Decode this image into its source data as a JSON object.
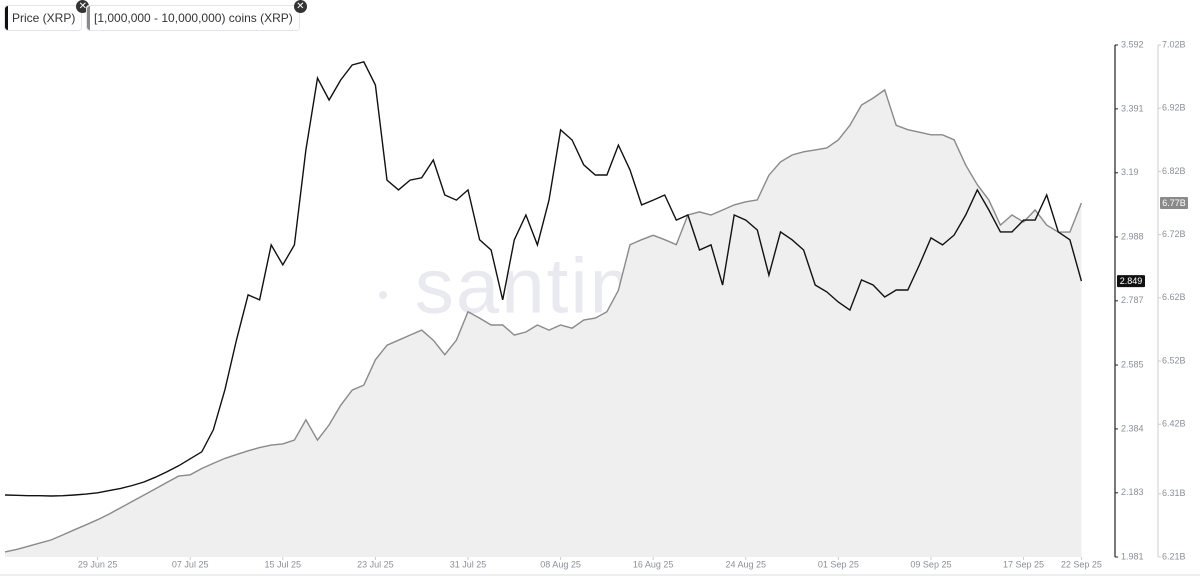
{
  "chart_data": {
    "type": "line",
    "watermark": "santiment",
    "x": [
      "21 Jun 25",
      "22 Jun 25",
      "23 Jun 25",
      "24 Jun 25",
      "25 Jun 25",
      "26 Jun 25",
      "27 Jun 25",
      "28 Jun 25",
      "29 Jun 25",
      "30 Jun 25",
      "01 Jul 25",
      "02 Jul 25",
      "03 Jul 25",
      "04 Jul 25",
      "05 Jul 25",
      "06 Jul 25",
      "07 Jul 25",
      "08 Jul 25",
      "09 Jul 25",
      "10 Jul 25",
      "11 Jul 25",
      "12 Jul 25",
      "13 Jul 25",
      "14 Jul 25",
      "15 Jul 25",
      "16 Jul 25",
      "17 Jul 25",
      "18 Jul 25",
      "19 Jul 25",
      "20 Jul 25",
      "21 Jul 25",
      "22 Jul 25",
      "23 Jul 25",
      "24 Jul 25",
      "25 Jul 25",
      "26 Jul 25",
      "27 Jul 25",
      "28 Jul 25",
      "29 Jul 25",
      "30 Jul 25",
      "31 Jul 25",
      "01 Aug 25",
      "02 Aug 25",
      "03 Aug 25",
      "04 Aug 25",
      "05 Aug 25",
      "06 Aug 25",
      "07 Aug 25",
      "08 Aug 25",
      "09 Aug 25",
      "10 Aug 25",
      "11 Aug 25",
      "12 Aug 25",
      "13 Aug 25",
      "14 Aug 25",
      "15 Aug 25",
      "16 Aug 25",
      "17 Aug 25",
      "18 Aug 25",
      "19 Aug 25",
      "20 Aug 25",
      "21 Aug 25",
      "22 Aug 25",
      "23 Aug 25",
      "24 Aug 25",
      "25 Aug 25",
      "26 Aug 25",
      "27 Aug 25",
      "28 Aug 25",
      "29 Aug 25",
      "30 Aug 25",
      "31 Aug 25",
      "01 Sep 25",
      "02 Sep 25",
      "03 Sep 25",
      "04 Sep 25",
      "05 Sep 25",
      "06 Sep 25",
      "07 Sep 25",
      "08 Sep 25",
      "09 Sep 25",
      "10 Sep 25",
      "11 Sep 25",
      "12 Sep 25",
      "13 Sep 25",
      "14 Sep 25",
      "15 Sep 25",
      "16 Sep 25",
      "17 Sep 25",
      "18 Sep 25",
      "19 Sep 25",
      "20 Sep 25",
      "21 Sep 25",
      "22 Sep 25"
    ],
    "xlim": [
      "21 Jun 25",
      "23 Sep 25"
    ],
    "xticks": [
      "29 Jun 25",
      "07 Jul 25",
      "15 Jul 25",
      "23 Jul 25",
      "31 Jul 25",
      "08 Aug 25",
      "16 Aug 25",
      "24 Aug 25",
      "01 Sep 25",
      "09 Sep 25",
      "17 Sep 25",
      "22 Sep 25"
    ],
    "ylim": [
      1.981,
      3.592
    ],
    "yticks": [
      3.592,
      3.391,
      3.19,
      2.988,
      2.787,
      2.585,
      2.384,
      2.183,
      1.981
    ],
    "y2lim": [
      6.21,
      7.02
    ],
    "y2ticks": [
      {
        "value": 7.02,
        "label": "7.02B"
      },
      {
        "value": 6.92,
        "label": "6.92B"
      },
      {
        "value": 6.82,
        "label": "6.82B"
      },
      {
        "value": 6.72,
        "label": "6.72B"
      },
      {
        "value": 6.62,
        "label": "6.62B"
      },
      {
        "value": 6.52,
        "label": "6.52B"
      },
      {
        "value": 6.42,
        "label": "6.42B"
      },
      {
        "value": 6.31,
        "label": "6.31B"
      },
      {
        "value": 6.21,
        "label": "6.21B"
      }
    ],
    "series": [
      {
        "name": "Price (XRP)",
        "color": "#111111",
        "last_label": "2.849",
        "values": [
          2.176,
          2.175,
          2.174,
          2.174,
          2.173,
          2.174,
          2.176,
          2.179,
          2.183,
          2.19,
          2.197,
          2.206,
          2.217,
          2.232,
          2.249,
          2.268,
          2.29,
          2.312,
          2.381,
          2.507,
          2.664,
          2.806,
          2.79,
          2.963,
          2.9,
          2.963,
          3.262,
          3.488,
          3.419,
          3.482,
          3.529,
          3.539,
          3.466,
          3.167,
          3.136,
          3.167,
          3.174,
          3.23,
          3.12,
          3.104,
          3.136,
          2.979,
          2.947,
          2.79,
          2.979,
          3.057,
          2.963,
          3.104,
          3.325,
          3.293,
          3.215,
          3.183,
          3.183,
          3.277,
          3.199,
          3.089,
          3.104,
          3.12,
          3.041,
          3.057,
          2.947,
          2.963,
          2.837,
          3.057,
          3.041,
          3.01,
          2.868,
          3.004,
          2.979,
          2.947,
          2.837,
          2.815,
          2.783,
          2.758,
          2.853,
          2.837,
          2.799,
          2.821,
          2.821,
          2.9,
          2.985,
          2.963,
          2.994,
          3.057,
          3.136,
          3.073,
          3.004,
          3.004,
          3.041,
          3.041,
          3.12,
          3.004,
          2.979,
          2.849
        ]
      },
      {
        "name": "[1,000,000 - 10,000,000) coins (XRP)",
        "color": "#8a8a8a",
        "fill": "#efefef",
        "axis": "y2",
        "last_label": "6.77B",
        "values": [
          6.218,
          6.222,
          6.227,
          6.232,
          6.237,
          6.245,
          6.253,
          6.261,
          6.269,
          6.278,
          6.288,
          6.298,
          6.308,
          6.318,
          6.328,
          6.338,
          6.34,
          6.35,
          6.358,
          6.366,
          6.372,
          6.378,
          6.383,
          6.387,
          6.389,
          6.395,
          6.427,
          6.395,
          6.419,
          6.45,
          6.474,
          6.482,
          6.522,
          6.545,
          6.553,
          6.561,
          6.569,
          6.553,
          6.53,
          6.553,
          6.598,
          6.588,
          6.577,
          6.577,
          6.561,
          6.566,
          6.577,
          6.569,
          6.577,
          6.572,
          6.585,
          6.588,
          6.598,
          6.632,
          6.704,
          6.712,
          6.719,
          6.712,
          6.704,
          6.751,
          6.756,
          6.751,
          6.759,
          6.767,
          6.772,
          6.775,
          6.814,
          6.835,
          6.846,
          6.851,
          6.854,
          6.857,
          6.87,
          6.893,
          6.925,
          6.936,
          6.949,
          6.893,
          6.886,
          6.882,
          6.878,
          6.878,
          6.87,
          6.83,
          6.799,
          6.775,
          6.735,
          6.751,
          6.74,
          6.759,
          6.735,
          6.724,
          6.724,
          6.77
        ]
      }
    ]
  }
}
